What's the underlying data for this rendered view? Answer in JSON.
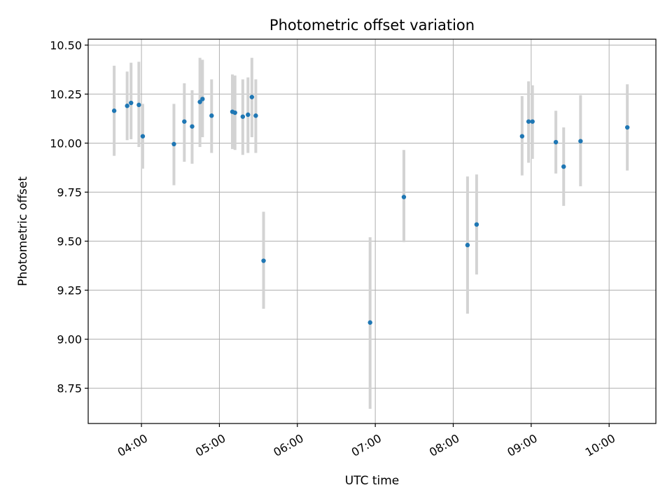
{
  "chart_data": {
    "type": "scatter",
    "title": "Photometric offset variation",
    "xlabel": "UTC time",
    "ylabel": "Photometric offset",
    "grid": true,
    "xlim": [
      "03:19",
      "10:36"
    ],
    "ylim": [
      8.57,
      10.53
    ],
    "x_ticks": [
      "04:00",
      "05:00",
      "06:00",
      "07:00",
      "08:00",
      "09:00",
      "10:00"
    ],
    "y_ticks": [
      "8.75",
      "9.00",
      "9.25",
      "9.50",
      "9.75",
      "10.00",
      "10.25",
      "10.50"
    ],
    "colors": {
      "point": "#1f77b4",
      "errorbar": "#d3d3d3",
      "grid": "#b0b0b0"
    },
    "series": [
      {
        "points": [
          {
            "x": "03:39",
            "y": 10.165,
            "low": 9.935,
            "high": 10.395
          },
          {
            "x": "03:49",
            "y": 10.19,
            "low": 10.015,
            "high": 10.365
          },
          {
            "x": "03:52",
            "y": 10.205,
            "low": 10.02,
            "high": 10.41
          },
          {
            "x": "03:58",
            "y": 10.195,
            "low": 9.98,
            "high": 10.415
          },
          {
            "x": "04:01",
            "y": 10.035,
            "low": 9.87,
            "high": 10.2
          },
          {
            "x": "04:25",
            "y": 9.995,
            "low": 9.785,
            "high": 10.2
          },
          {
            "x": "04:33",
            "y": 10.11,
            "low": 9.905,
            "high": 10.305
          },
          {
            "x": "04:39",
            "y": 10.085,
            "low": 9.895,
            "high": 10.27
          },
          {
            "x": "04:45",
            "y": 10.21,
            "low": 9.98,
            "high": 10.435
          },
          {
            "x": "04:47",
            "y": 10.225,
            "low": 10.03,
            "high": 10.425
          },
          {
            "x": "04:54",
            "y": 10.14,
            "low": 9.95,
            "high": 10.325
          },
          {
            "x": "05:10",
            "y": 10.16,
            "low": 9.97,
            "high": 10.35
          },
          {
            "x": "05:12",
            "y": 10.155,
            "low": 9.965,
            "high": 10.345
          },
          {
            "x": "05:18",
            "y": 10.135,
            "low": 9.94,
            "high": 10.325
          },
          {
            "x": "05:22",
            "y": 10.145,
            "low": 9.95,
            "high": 10.335
          },
          {
            "x": "05:25",
            "y": 10.235,
            "low": 10.03,
            "high": 10.435
          },
          {
            "x": "05:28",
            "y": 10.14,
            "low": 9.95,
            "high": 10.325
          },
          {
            "x": "05:34",
            "y": 9.4,
            "low": 9.155,
            "high": 9.65
          },
          {
            "x": "06:56",
            "y": 9.085,
            "low": 8.645,
            "high": 9.52
          },
          {
            "x": "07:22",
            "y": 9.725,
            "low": 9.495,
            "high": 9.965
          },
          {
            "x": "08:11",
            "y": 9.48,
            "low": 9.13,
            "high": 9.83
          },
          {
            "x": "08:18",
            "y": 9.585,
            "low": 9.33,
            "high": 9.84
          },
          {
            "x": "08:53",
            "y": 10.035,
            "low": 9.835,
            "high": 10.24
          },
          {
            "x": "08:58",
            "y": 10.11,
            "low": 9.9,
            "high": 10.315
          },
          {
            "x": "09:01",
            "y": 10.11,
            "low": 9.92,
            "high": 10.295
          },
          {
            "x": "09:19",
            "y": 10.005,
            "low": 9.845,
            "high": 10.165
          },
          {
            "x": "09:25",
            "y": 9.88,
            "low": 9.68,
            "high": 10.08
          },
          {
            "x": "09:38",
            "y": 10.01,
            "low": 9.78,
            "high": 10.245
          },
          {
            "x": "10:14",
            "y": 10.08,
            "low": 9.86,
            "high": 10.3
          }
        ]
      }
    ]
  }
}
